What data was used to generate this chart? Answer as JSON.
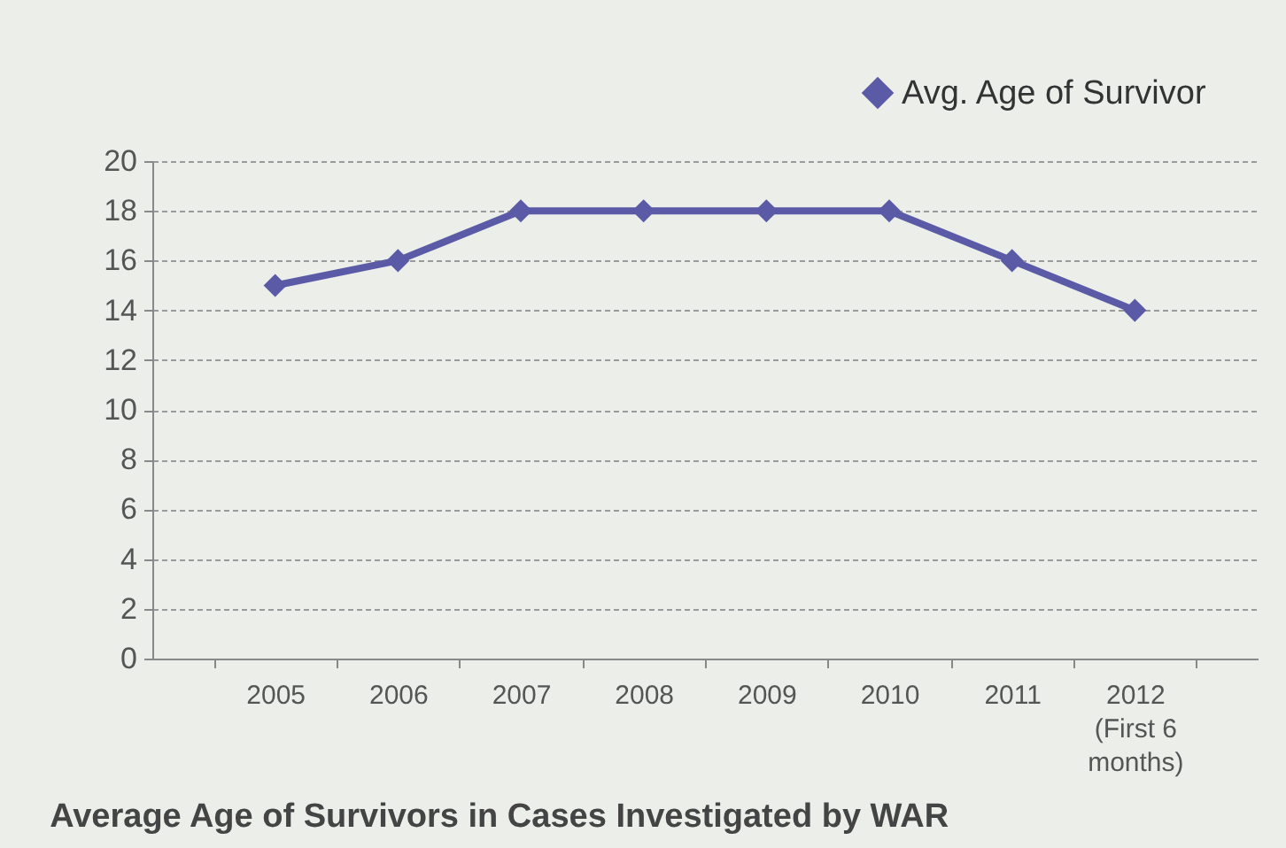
{
  "chart_data": {
    "type": "line",
    "title": "Average Age of Survivors in Cases Investigated by WAR",
    "categories": [
      "2005",
      "2006",
      "2007",
      "2008",
      "2009",
      "2010",
      "2011",
      "2012\n(First 6\nmonths)"
    ],
    "series": [
      {
        "name": "Avg. Age of Survivor",
        "color": "#5a5aa6",
        "values": [
          15,
          16,
          18,
          18,
          18,
          18,
          16,
          14
        ]
      }
    ],
    "ylim": [
      0,
      20
    ],
    "yticks": [
      0,
      2,
      4,
      6,
      8,
      10,
      12,
      14,
      16,
      18,
      20
    ],
    "grid": "y",
    "legend": "top right",
    "marker": "diamond",
    "line_style": "solid"
  }
}
